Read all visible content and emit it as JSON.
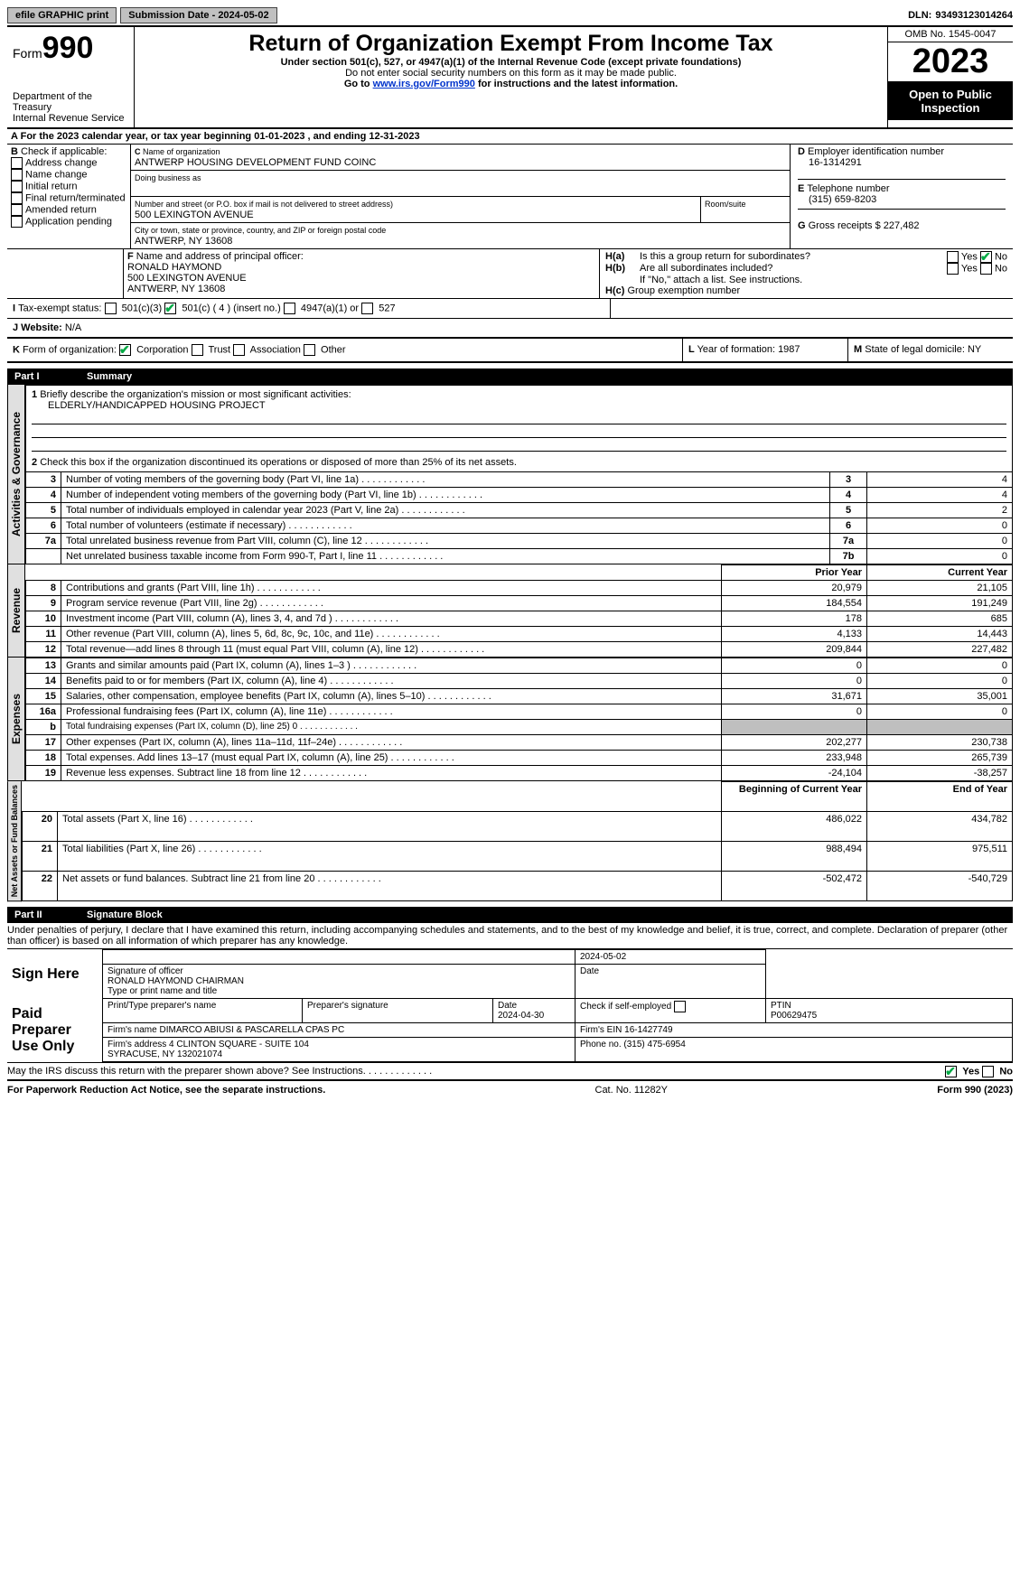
{
  "topbar": {
    "efile": "efile GRAPHIC print",
    "submission": "Submission Date - 2024-05-02",
    "dln_label": "DLN:",
    "dln": "93493123014264"
  },
  "header": {
    "form_word": "Form",
    "form_num": "990",
    "dept": "Department of the Treasury\nInternal Revenue Service",
    "title": "Return of Organization Exempt From Income Tax",
    "sub1": "Under section 501(c), 527, or 4947(a)(1) of the Internal Revenue Code (except private foundations)",
    "sub2": "Do not enter social security numbers on this form as it may be made public.",
    "sub3_pre": "Go to ",
    "sub3_link": "www.irs.gov/Form990",
    "sub3_post": " for instructions and the latest information.",
    "omb": "OMB No. 1545-0047",
    "year": "2023",
    "inspect": "Open to Public Inspection"
  },
  "a": {
    "text": "For the 2023 calendar year, or tax year beginning 01-01-2023    , and ending 12-31-2023"
  },
  "b": {
    "label": "Check if applicable:",
    "opts": [
      "Address change",
      "Name change",
      "Initial return",
      "Final return/terminated",
      "Amended return",
      "Application pending"
    ]
  },
  "c": {
    "name_label": "Name of organization",
    "name": "ANTWERP HOUSING DEVELOPMENT FUND COINC",
    "dba_label": "Doing business as",
    "addr_label": "Number and street (or P.O. box if mail is not delivered to street address)",
    "addr": "500 LEXINGTON AVENUE",
    "room_label": "Room/suite",
    "city_label": "City or town, state or province, country, and ZIP or foreign postal code",
    "city": "ANTWERP, NY  13608"
  },
  "d": {
    "label": "Employer identification number",
    "val": "16-1314291"
  },
  "e": {
    "label": "Telephone number",
    "val": "(315) 659-8203"
  },
  "g": {
    "label": "Gross receipts $",
    "val": "227,482"
  },
  "f": {
    "label": "Name and address of principal officer:",
    "name": "RONALD HAYMOND",
    "addr1": "500 LEXINGTON AVENUE",
    "addr2": "ANTWERP, NY  13608"
  },
  "h": {
    "a": "Is this a group return for subordinates?",
    "b": "Are all subordinates included?",
    "b_note": "If \"No,\" attach a list. See instructions.",
    "c": "Group exemption number",
    "yes": "Yes",
    "no": "No"
  },
  "i": {
    "label": "Tax-exempt status:",
    "o1": "501(c)(3)",
    "o2": "501(c) ( 4 ) (insert no.)",
    "o3": "4947(a)(1) or",
    "o4": "527"
  },
  "j": {
    "label": "Website:",
    "val": "N/A"
  },
  "k": {
    "label": "Form of organization:",
    "o1": "Corporation",
    "o2": "Trust",
    "o3": "Association",
    "o4": "Other"
  },
  "l": {
    "label": "Year of formation:",
    "val": "1987"
  },
  "m": {
    "label": "State of legal domicile:",
    "val": "NY"
  },
  "part1": {
    "name": "Part I",
    "title": "Summary"
  },
  "sideA": "Activities & Governance",
  "sideR": "Revenue",
  "sideE": "Expenses",
  "sideN": "Net Assets or Fund Balances",
  "s1": {
    "l1": "Briefly describe the organization's mission or most significant activities:",
    "l1v": "ELDERLY/HANDICAPPED HOUSING PROJECT",
    "l2": "Check this box       if the organization discontinued its operations or disposed of more than 25% of its net assets.",
    "rows": [
      {
        "n": "3",
        "t": "Number of voting members of the governing body (Part VI, line 1a)",
        "s": "3",
        "v": "4"
      },
      {
        "n": "4",
        "t": "Number of independent voting members of the governing body (Part VI, line 1b)",
        "s": "4",
        "v": "4"
      },
      {
        "n": "5",
        "t": "Total number of individuals employed in calendar year 2023 (Part V, line 2a)",
        "s": "5",
        "v": "2"
      },
      {
        "n": "6",
        "t": "Total number of volunteers (estimate if necessary)",
        "s": "6",
        "v": "0"
      },
      {
        "n": "7a",
        "t": "Total unrelated business revenue from Part VIII, column (C), line 12",
        "s": "7a",
        "v": "0"
      },
      {
        "n": "",
        "t": "Net unrelated business taxable income from Form 990-T, Part I, line 11",
        "s": "7b",
        "v": "0"
      }
    ]
  },
  "hdr": {
    "prior": "Prior Year",
    "curr": "Current Year",
    "begin": "Beginning of Current Year",
    "end": "End of Year"
  },
  "rev": [
    {
      "n": "8",
      "t": "Contributions and grants (Part VIII, line 1h)",
      "p": "20,979",
      "c": "21,105"
    },
    {
      "n": "9",
      "t": "Program service revenue (Part VIII, line 2g)",
      "p": "184,554",
      "c": "191,249"
    },
    {
      "n": "10",
      "t": "Investment income (Part VIII, column (A), lines 3, 4, and 7d )",
      "p": "178",
      "c": "685"
    },
    {
      "n": "11",
      "t": "Other revenue (Part VIII, column (A), lines 5, 6d, 8c, 9c, 10c, and 11e)",
      "p": "4,133",
      "c": "14,443"
    },
    {
      "n": "12",
      "t": "Total revenue—add lines 8 through 11 (must equal Part VIII, column (A), line 12)",
      "p": "209,844",
      "c": "227,482"
    }
  ],
  "exp": [
    {
      "n": "13",
      "t": "Grants and similar amounts paid (Part IX, column (A), lines 1–3 )",
      "p": "0",
      "c": "0"
    },
    {
      "n": "14",
      "t": "Benefits paid to or for members (Part IX, column (A), line 4)",
      "p": "0",
      "c": "0"
    },
    {
      "n": "15",
      "t": "Salaries, other compensation, employee benefits (Part IX, column (A), lines 5–10)",
      "p": "31,671",
      "c": "35,001"
    },
    {
      "n": "16a",
      "t": "Professional fundraising fees (Part IX, column (A), line 11e)",
      "p": "0",
      "c": "0"
    },
    {
      "n": "b",
      "t": "Total fundraising expenses (Part IX, column (D), line 25) 0",
      "p": "",
      "c": "",
      "shade": true,
      "small": true
    },
    {
      "n": "17",
      "t": "Other expenses (Part IX, column (A), lines 11a–11d, 11f–24e)",
      "p": "202,277",
      "c": "230,738"
    },
    {
      "n": "18",
      "t": "Total expenses. Add lines 13–17 (must equal Part IX, column (A), line 25)",
      "p": "233,948",
      "c": "265,739"
    },
    {
      "n": "19",
      "t": "Revenue less expenses. Subtract line 18 from line 12",
      "p": "-24,104",
      "c": "-38,257"
    }
  ],
  "net": [
    {
      "n": "20",
      "t": "Total assets (Part X, line 16)",
      "p": "486,022",
      "c": "434,782"
    },
    {
      "n": "21",
      "t": "Total liabilities (Part X, line 26)",
      "p": "988,494",
      "c": "975,511"
    },
    {
      "n": "22",
      "t": "Net assets or fund balances. Subtract line 21 from line 20",
      "p": "-502,472",
      "c": "-540,729"
    }
  ],
  "part2": {
    "name": "Part II",
    "title": "Signature Block"
  },
  "perjury": "Under penalties of perjury, I declare that I have examined this return, including accompanying schedules and statements, and to the best of my knowledge and belief, it is true, correct, and complete. Declaration of preparer (other than officer) is based on all information of which preparer has any knowledge.",
  "sign": {
    "here": "Sign Here",
    "sigoff": "Signature of officer",
    "officer": "RONALD HAYMOND  CHAIRMAN",
    "date": "2024-05-02",
    "date_label": "Date",
    "type_label": "Type or print name and title"
  },
  "paid": {
    "title": "Paid Preparer Use Only",
    "h1": "Print/Type preparer's name",
    "h2": "Preparer's signature",
    "h3": "Date",
    "h4": "Check        if self-employed",
    "h5": "PTIN",
    "date": "2024-04-30",
    "ptin": "P00629475",
    "firm_l": "Firm's name",
    "firm": "DIMARCO ABIUSI & PASCARELLA CPAS PC",
    "ein_l": "Firm's EIN",
    "ein": "16-1427749",
    "addr_l": "Firm's address",
    "addr": "4 CLINTON SQUARE - SUITE 104\nSYRACUSE, NY  132021074",
    "phone_l": "Phone no.",
    "phone": "(315) 475-6954"
  },
  "discuss": "May the IRS discuss this return with the preparer shown above? See Instructions.",
  "foot": {
    "l": "For Paperwork Reduction Act Notice, see the separate instructions.",
    "m": "Cat. No. 11282Y",
    "r": "Form 990 (2023)"
  }
}
